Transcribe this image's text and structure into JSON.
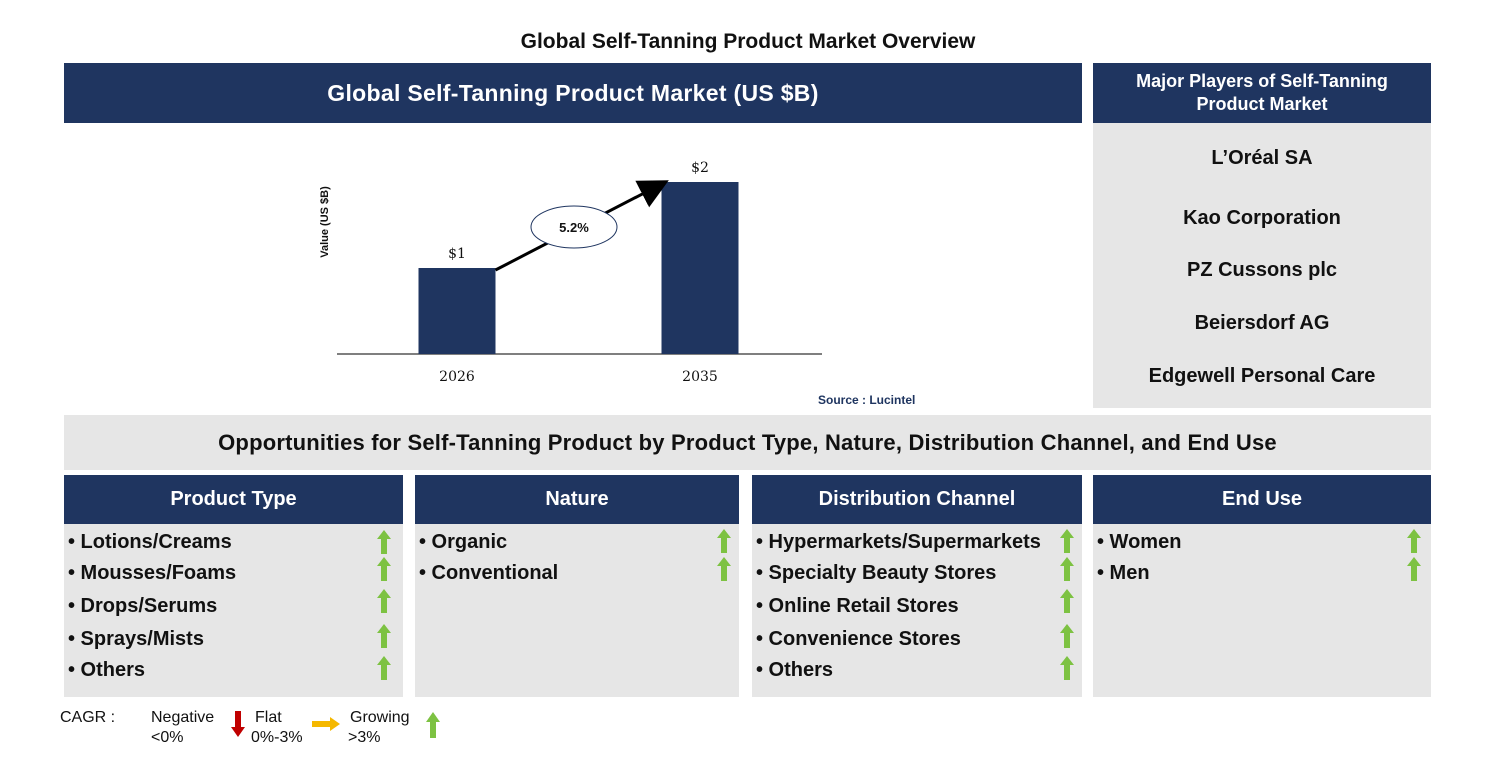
{
  "title": "Global Self-Tanning Product Market Overview",
  "chart_header": "Global Self-Tanning Product Market (US $B)",
  "players": {
    "header": "Major Players of Self-Tanning Product Market",
    "items": [
      "L’Oréal SA",
      "Kao Corporation",
      "PZ Cussons plc",
      "Beiersdorf AG",
      "Edgewell Personal Care"
    ]
  },
  "chart_data": {
    "type": "bar",
    "categories": [
      "2026",
      "2035"
    ],
    "values": [
      1,
      2
    ],
    "data_labels": [
      "$1",
      "$2"
    ],
    "ylabel": "Value (US $B)",
    "cagr_label": "5.2%",
    "bar_color": "#1f3560",
    "grid": false
  },
  "source": "Source : Lucintel",
  "opportunities_title": "Opportunities for Self-Tanning Product by Product Type, Nature, Distribution Channel, and End Use",
  "segments": [
    {
      "title": "Product Type",
      "items": [
        "• Lotions/Creams",
        "• Mousses/Foams",
        "• Drops/Serums",
        "• Sprays/Mists",
        "• Others"
      ],
      "trend": "growing"
    },
    {
      "title": "Nature",
      "items": [
        "• Organic",
        "• Conventional"
      ],
      "trend": "growing"
    },
    {
      "title": "Distribution Channel",
      "items": [
        "• Hypermarkets/Supermarkets",
        "• Specialty Beauty Stores",
        "• Online Retail Stores",
        "• Convenience Stores",
        "• Others"
      ],
      "trend": "growing"
    },
    {
      "title": "End Use",
      "items": [
        "• Women",
        "• Men"
      ],
      "trend": "growing"
    }
  ],
  "legend": {
    "label": "CAGR  :",
    "negative": {
      "line1": "Negative",
      "line2": "<0%",
      "color": "#c00000"
    },
    "flat": {
      "line1": "Flat",
      "line2": "0%-3%",
      "color": "#f5b800"
    },
    "growing": {
      "line1": "Growing",
      "line2": ">3%",
      "color": "#7dc242"
    }
  },
  "colors": {
    "navy": "#1f3560",
    "panel_gray": "#e6e6e6",
    "growth_green": "#7dc242"
  }
}
